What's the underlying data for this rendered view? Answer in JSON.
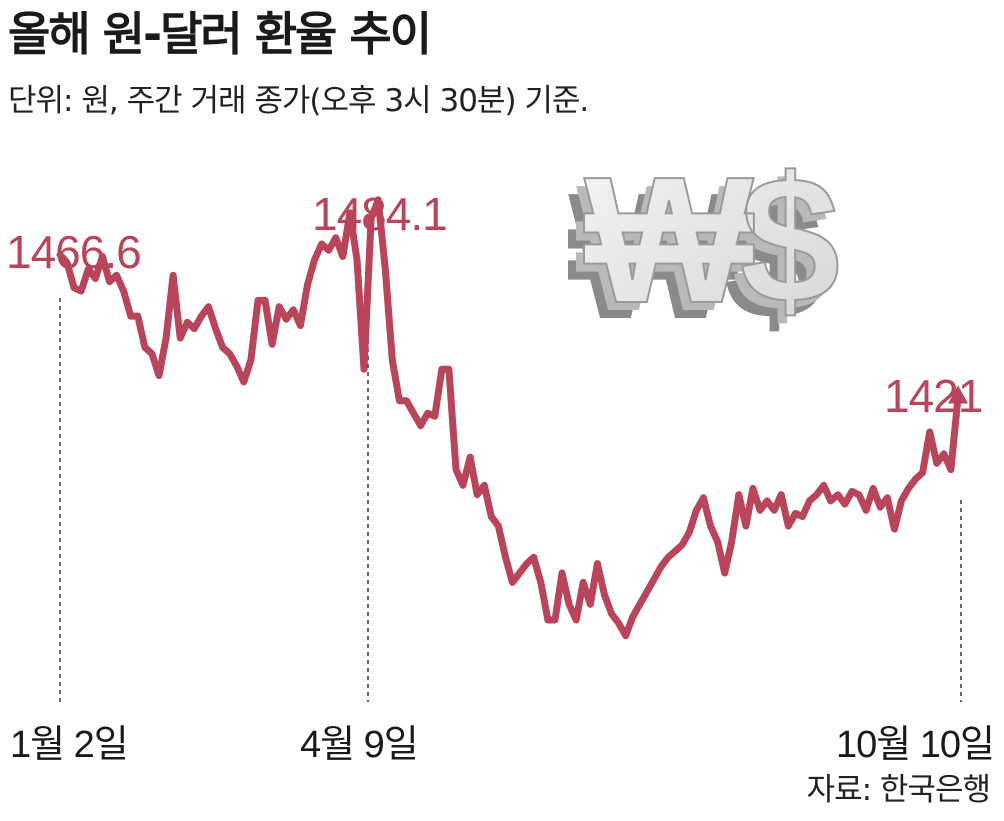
{
  "title": "올해 원-달러 환율 추이",
  "subtitle": "단위: 원, 주간 거래 종가(오후 3시 30분) 기준.",
  "source": "자료: 한국은행",
  "illustration_glyphs": "₩$",
  "colors": {
    "line": "#b84559",
    "text": "#1a1a1a"
  },
  "chart_data": {
    "type": "line",
    "x_range": [
      "1월 2일",
      "10월 10일"
    ],
    "ylim": [
      1350,
      1500
    ],
    "grid": false,
    "legend": "none",
    "annotations": [
      {
        "date": "1월 2일",
        "value_label": "1466.6"
      },
      {
        "date": "4월 9일",
        "value_label": "1484.1"
      },
      {
        "date": "10월 10일",
        "value_label": "1421"
      }
    ],
    "values": [
      1466.6,
      1464,
      1456,
      1455,
      1462,
      1459,
      1466,
      1458,
      1460,
      1455,
      1447,
      1447,
      1437,
      1435,
      1428,
      1440,
      1460,
      1440,
      1445,
      1443,
      1447,
      1450,
      1443,
      1437,
      1435,
      1431,
      1426,
      1433,
      1452,
      1452,
      1438,
      1450,
      1446,
      1449,
      1444,
      1457,
      1465,
      1470,
      1468,
      1472,
      1466,
      1480,
      1465,
      1430,
      1478,
      1484.1,
      1462,
      1433,
      1420,
      1420,
      1416,
      1412,
      1416,
      1415,
      1430,
      1430,
      1398,
      1393,
      1402,
      1390,
      1393,
      1383,
      1380,
      1370,
      1362,
      1365,
      1368,
      1370,
      1362,
      1350,
      1350,
      1365,
      1355,
      1350,
      1362,
      1355,
      1368,
      1358,
      1352,
      1349,
      1345,
      1351,
      1355,
      1359,
      1363,
      1367,
      1370,
      1372,
      1374,
      1378,
      1385,
      1389,
      1380,
      1375,
      1365,
      1375,
      1390,
      1380,
      1392,
      1385,
      1388,
      1385,
      1390,
      1380,
      1384,
      1383,
      1388,
      1390,
      1393,
      1388,
      1390,
      1387,
      1391,
      1390,
      1385,
      1392,
      1386,
      1389,
      1379,
      1388,
      1392,
      1395,
      1397,
      1410,
      1400,
      1403,
      1398,
      1421
    ]
  }
}
